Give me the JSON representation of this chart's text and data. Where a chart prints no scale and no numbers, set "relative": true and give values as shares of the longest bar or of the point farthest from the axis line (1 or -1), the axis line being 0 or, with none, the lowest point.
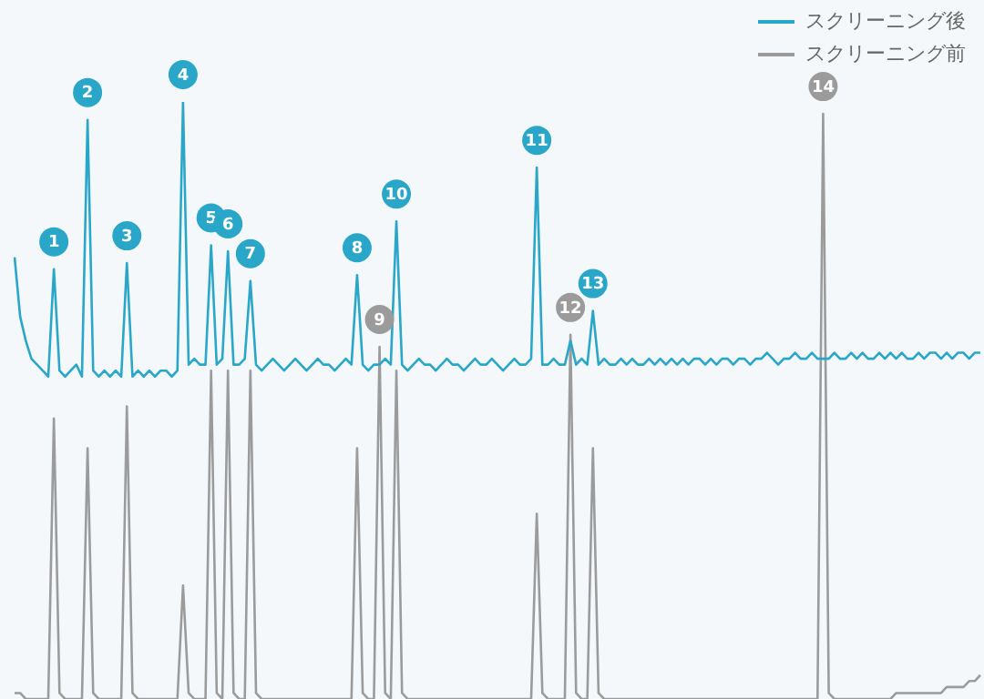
{
  "chart_data": {
    "type": "line",
    "relative": true,
    "legend": "top right",
    "marker": "none",
    "line_style": "solid",
    "grid": false,
    "tick_labels": false,
    "categories": [
      null,
      null,
      null,
      null,
      null,
      null,
      null,
      null,
      null,
      null,
      null,
      null,
      null,
      null,
      null,
      null,
      null,
      null,
      null,
      null,
      null,
      null,
      null,
      null,
      null,
      null,
      null,
      null,
      null,
      null,
      null,
      null,
      null,
      null,
      null,
      null,
      null,
      null,
      null,
      null,
      null,
      null,
      null,
      null,
      null,
      null,
      null,
      null,
      null,
      null,
      null,
      null,
      null,
      null,
      null,
      null,
      null,
      null,
      null,
      null,
      null,
      null,
      null,
      null,
      null,
      null,
      null,
      null,
      null,
      null,
      null,
      null,
      null,
      null,
      null,
      null,
      null,
      null,
      null,
      null,
      null,
      null,
      null,
      null,
      null,
      null,
      null,
      null,
      null,
      null,
      null,
      null,
      null,
      null,
      null,
      null,
      null,
      null,
      null,
      null,
      null,
      null,
      null,
      null,
      null,
      null,
      null,
      null,
      null,
      null,
      null,
      null,
      null,
      null,
      null,
      null,
      null,
      null,
      null,
      null,
      null,
      null,
      null,
      null,
      null,
      null,
      null,
      null,
      null,
      null,
      null,
      null,
      null,
      null,
      null,
      null,
      null,
      null,
      null,
      null,
      null,
      null,
      null,
      null,
      null,
      null,
      null,
      null,
      null,
      null,
      null,
      null,
      null,
      null,
      null,
      null,
      null,
      null,
      null,
      null,
      null,
      null,
      null,
      null,
      null,
      null,
      null,
      null,
      null,
      null,
      null,
      null,
      null
    ],
    "series": [
      {
        "name": "スクリーニング後",
        "color": "#2aa6c9",
        "values": [
          0.74,
          0.64,
          0.6,
          0.57,
          0.56,
          0.55,
          0.54,
          0.72,
          0.55,
          0.54,
          0.55,
          0.56,
          0.54,
          0.97,
          0.55,
          0.54,
          0.55,
          0.54,
          0.55,
          0.54,
          0.73,
          0.54,
          0.55,
          0.54,
          0.55,
          0.54,
          0.55,
          0.55,
          0.54,
          0.55,
          1.0,
          0.56,
          0.57,
          0.56,
          0.56,
          0.76,
          0.56,
          0.57,
          0.75,
          0.56,
          0.56,
          0.57,
          0.7,
          0.56,
          0.55,
          0.56,
          0.57,
          0.56,
          0.55,
          0.56,
          0.57,
          0.56,
          0.55,
          0.56,
          0.57,
          0.56,
          0.56,
          0.55,
          0.56,
          0.57,
          0.56,
          0.71,
          0.56,
          0.55,
          0.56,
          0.56,
          0.57,
          0.56,
          0.8,
          0.56,
          0.55,
          0.56,
          0.57,
          0.56,
          0.56,
          0.55,
          0.56,
          0.57,
          0.56,
          0.56,
          0.55,
          0.56,
          0.57,
          0.56,
          0.56,
          0.57,
          0.56,
          0.55,
          0.56,
          0.57,
          0.56,
          0.56,
          0.57,
          0.89,
          0.56,
          0.56,
          0.57,
          0.56,
          0.56,
          0.6,
          0.56,
          0.57,
          0.56,
          0.65,
          0.56,
          0.57,
          0.56,
          0.56,
          0.57,
          0.56,
          0.57,
          0.56,
          0.56,
          0.57,
          0.56,
          0.57,
          0.56,
          0.57,
          0.56,
          0.57,
          0.56,
          0.57,
          0.57,
          0.56,
          0.57,
          0.56,
          0.57,
          0.57,
          0.56,
          0.57,
          0.57,
          0.56,
          0.57,
          0.57,
          0.58,
          0.57,
          0.56,
          0.57,
          0.57,
          0.58,
          0.57,
          0.57,
          0.58,
          0.57,
          0.57,
          0.57,
          0.58,
          0.57,
          0.57,
          0.58,
          0.57,
          0.58,
          0.57,
          0.57,
          0.58,
          0.57,
          0.58,
          0.57,
          0.58,
          0.57,
          0.57,
          0.58,
          0.57,
          0.58,
          0.58,
          0.57,
          0.58,
          0.57,
          0.58,
          0.58,
          0.57,
          0.58,
          0.58
        ]
      },
      {
        "name": "スクリーニング前",
        "color": "#9b9b9b",
        "values": [
          0.01,
          0.01,
          0,
          0,
          0,
          0,
          0,
          0.47,
          0.01,
          0,
          0,
          0,
          0,
          0.42,
          0.01,
          0,
          0,
          0,
          0,
          0,
          0.49,
          0.01,
          0,
          0,
          0,
          0,
          0,
          0,
          0,
          0,
          0.19,
          0.01,
          0,
          0,
          0,
          0.55,
          0.01,
          0,
          0.55,
          0.01,
          0,
          0,
          0.55,
          0.01,
          0,
          0,
          0,
          0,
          0,
          0,
          0,
          0,
          0,
          0,
          0,
          0,
          0,
          0,
          0,
          0,
          0,
          0.42,
          0.01,
          0,
          0,
          0.59,
          0.01,
          0,
          0.55,
          0.01,
          0,
          0,
          0,
          0,
          0,
          0,
          0,
          0,
          0,
          0,
          0,
          0,
          0,
          0,
          0,
          0,
          0,
          0,
          0,
          0,
          0,
          0,
          0,
          0.31,
          0.01,
          0,
          0,
          0,
          0,
          0.61,
          0.01,
          0,
          0,
          0.42,
          0.01,
          0,
          0,
          0,
          0,
          0,
          0,
          0,
          0,
          0,
          0,
          0,
          0,
          0,
          0,
          0,
          0,
          0,
          0,
          0,
          0,
          0,
          0,
          0,
          0,
          0,
          0,
          0,
          0,
          0,
          0,
          0,
          0,
          0,
          0,
          0,
          0,
          0,
          0,
          0,
          0.98,
          0.01,
          0,
          0,
          0,
          0,
          0,
          0,
          0,
          0,
          0,
          0,
          0,
          0.01,
          0.01,
          0.01,
          0.01,
          0.01,
          0.01,
          0.01,
          0.01,
          0.01,
          0.02,
          0.02,
          0.02,
          0.02,
          0.03,
          0.03,
          0.04
        ]
      }
    ],
    "annotations": [
      {
        "text": "1",
        "y": 0.72
      },
      {
        "text": "2",
        "y": 0.97
      },
      {
        "text": "3",
        "y": 0.73
      },
      {
        "text": "4",
        "y": 1.0
      },
      {
        "text": "5",
        "y": 0.76
      },
      {
        "text": "6",
        "y": 0.75
      },
      {
        "text": "7",
        "y": 0.7
      },
      {
        "text": "8",
        "y": 0.71
      },
      {
        "text": "9",
        "y": 0.59
      },
      {
        "text": "10",
        "y": 0.8
      },
      {
        "text": "11",
        "y": 0.89
      },
      {
        "text": "12",
        "y": 0.61
      },
      {
        "text": "13",
        "y": 0.65
      },
      {
        "text": "14",
        "y": 0.98
      }
    ]
  }
}
